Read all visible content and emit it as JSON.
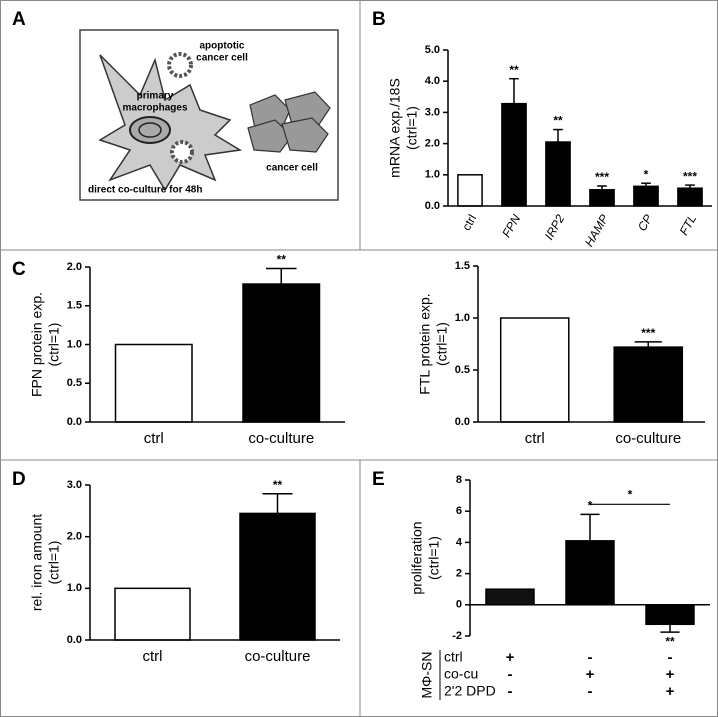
{
  "panel_labels": [
    "A",
    "B",
    "C",
    "D",
    "E"
  ],
  "diagram": {
    "apoptotic_label": [
      "apoptotic",
      "cancer cell"
    ],
    "macrophage_label": [
      "primary",
      "macrophages"
    ],
    "cancer_label": "cancer cell",
    "caption": "direct co-culture for 48h"
  },
  "chart_data": [
    {
      "type": "bar",
      "ylabel": [
        "mRNA exp./18S",
        "(ctrl=1)"
      ],
      "categories": [
        "ctrl",
        "FPN",
        "IRP2",
        "HAMP",
        "CP",
        "FTL"
      ],
      "italic_categories": [
        false,
        true,
        true,
        true,
        true,
        true
      ],
      "values": [
        1.0,
        3.28,
        2.05,
        0.52,
        0.63,
        0.57
      ],
      "errors": [
        0,
        0.8,
        0.4,
        0.12,
        0.1,
        0.1
      ],
      "significance": [
        null,
        "**",
        "**",
        "***",
        "*",
        "***"
      ],
      "colors": [
        "#ffffff",
        "#000000",
        "#000000",
        "#000000",
        "#000000",
        "#000000"
      ],
      "ylim": [
        0,
        5
      ],
      "yticks": [
        {
          "value": 0,
          "label": "0.0"
        },
        {
          "value": 1,
          "label": "1.0"
        },
        {
          "value": 2,
          "label": "2.0"
        },
        {
          "value": 3,
          "label": "3.0"
        },
        {
          "value": 4,
          "label": "4.0"
        },
        {
          "value": 5,
          "label": "5.0"
        }
      ]
    },
    {
      "type": "bar",
      "ylabel": [
        "FPN protein exp.",
        "(ctrl=1)"
      ],
      "categories": [
        "ctrl",
        "co-culture"
      ],
      "values": [
        1.0,
        1.78
      ],
      "errors": [
        0,
        0.2
      ],
      "significance": [
        null,
        "**"
      ],
      "colors": [
        "#ffffff",
        "#000000"
      ],
      "ylim": [
        0,
        2
      ],
      "yticks": [
        {
          "value": 0,
          "label": "0.0"
        },
        0.5,
        {
          "value": 1,
          "label": "1.0"
        },
        1.5,
        {
          "value": 2,
          "label": "2.0"
        }
      ]
    },
    {
      "type": "bar",
      "ylabel": [
        "FTL protein exp.",
        "(ctrl=1)"
      ],
      "categories": [
        "ctrl",
        "co-culture"
      ],
      "values": [
        1.0,
        0.72
      ],
      "errors": [
        0,
        0.05
      ],
      "significance": [
        null,
        "***"
      ],
      "colors": [
        "#ffffff",
        "#000000"
      ],
      "ylim": [
        0,
        1.5
      ],
      "yticks": [
        {
          "value": 0,
          "label": "0.0"
        },
        0.5,
        {
          "value": 1,
          "label": "1.0"
        },
        1.5
      ]
    },
    {
      "type": "bar",
      "ylabel": [
        "rel. iron amount",
        "(ctrl=1)"
      ],
      "categories": [
        "ctrl",
        "co-culture"
      ],
      "values": [
        1.0,
        2.45
      ],
      "errors": [
        0,
        0.38
      ],
      "significance": [
        null,
        "**"
      ],
      "colors": [
        "#ffffff",
        "#000000"
      ],
      "ylim": [
        0,
        3
      ],
      "yticks": [
        {
          "value": 0,
          "label": "0.0"
        },
        {
          "value": 1,
          "label": "1.0"
        },
        {
          "value": 2,
          "label": "2.0"
        },
        {
          "value": 3,
          "label": "3.0"
        }
      ]
    },
    {
      "type": "bar",
      "ylabel": [
        "proliferation",
        "(ctrl=1)"
      ],
      "values": [
        1.0,
        4.1,
        -1.25
      ],
      "errors": [
        0,
        1.7,
        0.5
      ],
      "significance": [
        null,
        "*",
        "**"
      ],
      "colors": [
        "#111111",
        "#000000",
        "#000000"
      ],
      "brackets": [
        {
          "between": [
            1,
            2
          ],
          "label": "*"
        }
      ],
      "ylim": [
        -2,
        8
      ],
      "yticks": [
        -2,
        0,
        2,
        4,
        6,
        8
      ],
      "table": {
        "title": "MΦ-SN",
        "rows": [
          {
            "label": "ctrl",
            "cells": [
              "+",
              "-",
              "-"
            ]
          },
          {
            "label": "co-cu",
            "cells": [
              "-",
              "+",
              "+"
            ]
          },
          {
            "label": "2'2 DPD",
            "cells": [
              "-",
              "-",
              "+"
            ]
          }
        ]
      }
    }
  ]
}
